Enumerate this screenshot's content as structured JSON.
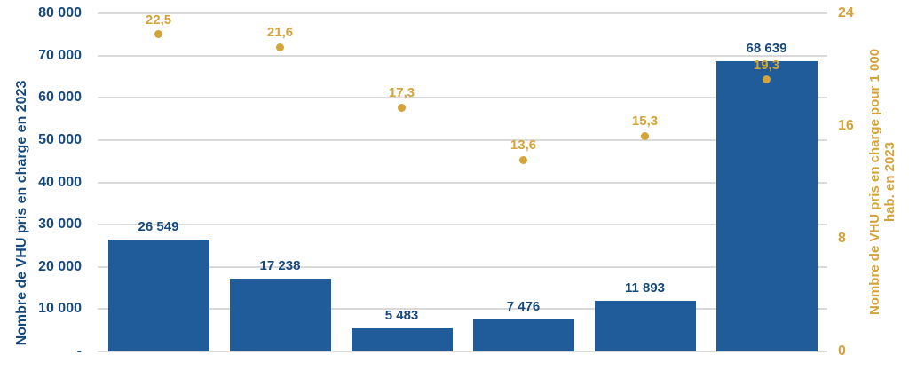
{
  "chart_data": {
    "type": "bar",
    "subtype": "combo-bar-and-scatter-dual-axis",
    "categories": [
      "",
      "",
      "",
      "",
      "",
      ""
    ],
    "series": [
      {
        "name": "Nombre de VHU pris en charge en 2023",
        "type": "bar",
        "axis": "left",
        "color": "#1F5C99",
        "values": [
          26549,
          17238,
          5483,
          7476,
          11893,
          68639
        ],
        "labels": [
          "26 549",
          "17 238",
          "5 483",
          "7 476",
          "11 893",
          "68 639"
        ]
      },
      {
        "name": "Nombre de VHU pris en charge pour 1 000 hab. en 2023",
        "type": "scatter",
        "axis": "right",
        "color": "#D4A339",
        "values": [
          22.5,
          21.6,
          17.3,
          13.6,
          15.3,
          19.3
        ],
        "labels": [
          "22,5",
          "21,6",
          "17,3",
          "13,6",
          "15,3",
          "19,3"
        ]
      }
    ],
    "left_axis": {
      "title": "Nombre de VHU pris en charge en 2023",
      "min": 0,
      "max": 80000,
      "tick_step": 10000,
      "tick_labels": [
        "-",
        "10 000",
        "20 000",
        "30 000",
        "40 000",
        "50 000",
        "60 000",
        "70 000",
        "80 000"
      ],
      "color": "#17497C"
    },
    "right_axis": {
      "title_line1": "Nombre de VHU pris en charge pour 1 000",
      "title_line2": "hab. en 2023",
      "min": 0,
      "max": 24,
      "tick_step": 8,
      "tick_labels": [
        "0",
        "8",
        "16",
        "24"
      ],
      "color": "#D4A339"
    },
    "grid": {
      "show": true,
      "color": "#D9D9D9"
    }
  },
  "colors": {
    "bar_blue": "#1F5C99",
    "text_navy": "#17497C",
    "gold": "#D4A339",
    "gridline": "#D9D9D9",
    "background": "#FFFFFF"
  }
}
